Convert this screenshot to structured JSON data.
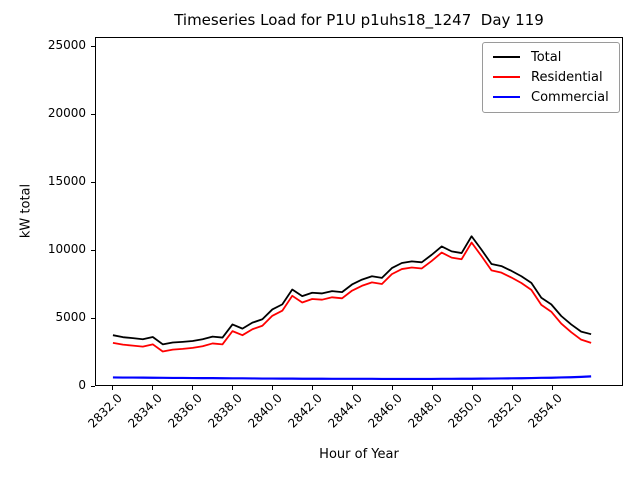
{
  "title": "Timeseries Load for P1U p1uhs18_1247  Day 119",
  "axes": {
    "xlabel": "Hour of Year",
    "ylabel": "kW total"
  },
  "chart_data": {
    "type": "line",
    "title": "Timeseries Load for P1U p1uhs18_1247  Day 119",
    "xlabel": "Hour of Year",
    "ylabel": "kW total",
    "grid": false,
    "legend_position": "upper right",
    "xlim": [
      2831.15,
      2857.55
    ],
    "ylim": [
      0,
      25660
    ],
    "xticks": [
      2832,
      2834,
      2836,
      2838,
      2840,
      2842,
      2844,
      2846,
      2848,
      2850,
      2852,
      2854
    ],
    "xtick_labels": [
      "2832.0",
      "2834.0",
      "2836.0",
      "2838.0",
      "2840.0",
      "2842.0",
      "2844.0",
      "2846.0",
      "2848.0",
      "2850.0",
      "2852.0",
      "2854.0"
    ],
    "yticks": [
      0,
      5000,
      10000,
      15000,
      20000,
      25000
    ],
    "ytick_labels": [
      "0",
      "5000",
      "10000",
      "15000",
      "20000",
      "25000"
    ],
    "x": [
      2832.0,
      2832.5,
      2833.0,
      2833.5,
      2834.0,
      2834.5,
      2835.0,
      2835.5,
      2836.0,
      2836.5,
      2837.0,
      2837.5,
      2838.0,
      2838.5,
      2839.0,
      2839.5,
      2840.0,
      2840.5,
      2841.0,
      2841.5,
      2842.0,
      2842.5,
      2843.0,
      2843.5,
      2844.0,
      2844.5,
      2845.0,
      2845.5,
      2846.0,
      2846.5,
      2847.0,
      2847.5,
      2848.0,
      2848.5,
      2849.0,
      2849.5,
      2850.0,
      2850.5,
      2851.0,
      2851.5,
      2852.0,
      2852.5,
      2853.0,
      2853.5,
      2854.0,
      2854.5,
      2855.0,
      2855.5,
      2856.0
    ],
    "series": [
      {
        "name": "Total",
        "color": "#000000",
        "values": [
          3680,
          3540,
          3460,
          3380,
          3550,
          3010,
          3140,
          3190,
          3260,
          3380,
          3580,
          3510,
          4480,
          4170,
          4610,
          4860,
          5590,
          5960,
          7060,
          6570,
          6820,
          6770,
          6940,
          6870,
          7430,
          7790,
          8040,
          7920,
          8650,
          9020,
          9140,
          9070,
          9630,
          10250,
          9880,
          9760,
          11000,
          10000,
          8950,
          8790,
          8440,
          8040,
          7550,
          6450,
          5960,
          5100,
          4480,
          3950,
          3760
        ]
      },
      {
        "name": "Residential",
        "color": "#ff0000",
        "values": [
          3120,
          2985,
          2910,
          2835,
          3010,
          2480,
          2615,
          2670,
          2745,
          2870,
          3075,
          3010,
          3985,
          3680,
          4125,
          4380,
          5115,
          5490,
          6592,
          6105,
          6358,
          6310,
          6482,
          6414,
          6975,
          7336,
          7587,
          7468,
          8199,
          8570,
          8690,
          8620,
          9178,
          9795,
          9422,
          9298,
          10534,
          9530,
          8474,
          8308,
          7950,
          7540,
          7038,
          5924,
          5420,
          4544,
          3905,
          3350,
          3120
        ]
      },
      {
        "name": "Commercial",
        "color": "#0000ff",
        "values": [
          560,
          555,
          550,
          545,
          540,
          530,
          525,
          520,
          515,
          510,
          505,
          500,
          495,
          490,
          485,
          480,
          475,
          470,
          468,
          465,
          462,
          460,
          458,
          456,
          455,
          454,
          453,
          452,
          451,
          450,
          450,
          450,
          452,
          455,
          458,
          462,
          466,
          470,
          476,
          482,
          490,
          500,
          512,
          526,
          540,
          556,
          575,
          600,
          640
        ]
      }
    ]
  }
}
